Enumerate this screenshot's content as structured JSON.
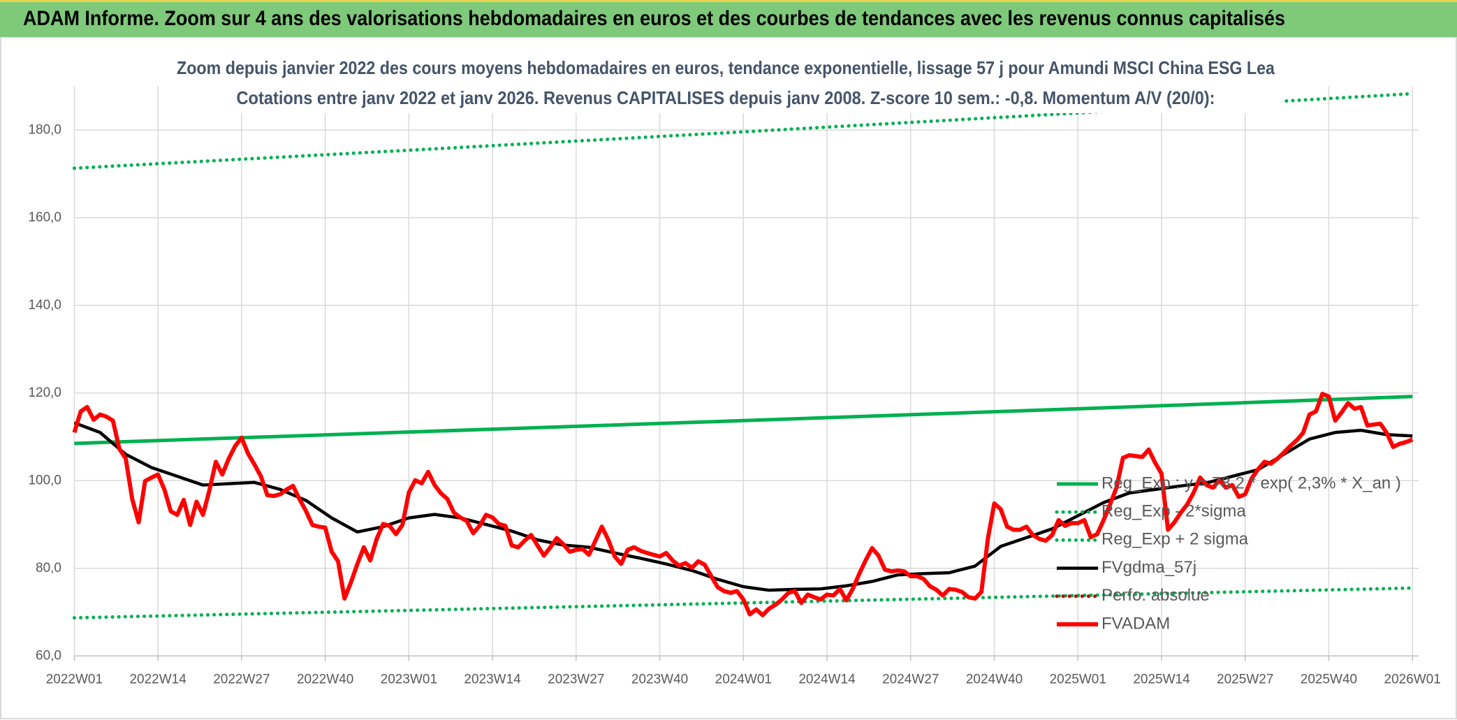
{
  "header": {
    "title": "ADAM Informe. Zoom sur 4 ans des valorisations hebdomadaires en euros et des courbes de tendances avec les revenus connus capitalisés"
  },
  "chart_data": {
    "type": "line",
    "title": "Zoom depuis janvier 2022 des cours moyens hebdomadaires en euros, tendance exponentielle, lissage 57 j pour Amundi MSCI China ESG Lea",
    "subtitle": "Cotations entre janv 2022 et janv 2026. Revenus CAPITALISES depuis janv 2008. Z-score 10 sem.: -0,8. Momentum A/V (20/0):",
    "xlim": [
      0,
      208
    ],
    "xticks": [
      {
        "value": 0,
        "label": "2022W01"
      },
      {
        "value": 13,
        "label": "2022W14"
      },
      {
        "value": 26,
        "label": "2022W27"
      },
      {
        "value": 39,
        "label": "2022W40"
      },
      {
        "value": 52,
        "label": "2023W01"
      },
      {
        "value": 65,
        "label": "2023W14"
      },
      {
        "value": 78,
        "label": "2023W27"
      },
      {
        "value": 91,
        "label": "2023W40"
      },
      {
        "value": 104,
        "label": "2024W01"
      },
      {
        "value": 117,
        "label": "2024W14"
      },
      {
        "value": 130,
        "label": "2024W27"
      },
      {
        "value": 143,
        "label": "2024W40"
      },
      {
        "value": 156,
        "label": "2025W01"
      },
      {
        "value": 169,
        "label": "2025W14"
      },
      {
        "value": 182,
        "label": "2025W27"
      },
      {
        "value": 195,
        "label": "2025W40"
      },
      {
        "value": 208,
        "label": "2026W01"
      }
    ],
    "ylim": [
      60,
      190
    ],
    "yticks": [
      {
        "value": 60,
        "label": "60,0"
      },
      {
        "value": 80,
        "label": "80,0"
      },
      {
        "value": 100,
        "label": "100,0"
      },
      {
        "value": 120,
        "label": "120,0"
      },
      {
        "value": 140,
        "label": "140,0"
      },
      {
        "value": 160,
        "label": "160,0"
      },
      {
        "value": 180,
        "label": "180,0"
      }
    ],
    "grid": true,
    "series": [
      {
        "name": "Reg_Exp : y = 78,2 * exp( 2,3% *  X_an )",
        "color": "#00b050",
        "dash": "solid",
        "x": [
          0,
          52,
          104,
          156,
          208
        ],
        "values": [
          108.5,
          111.1,
          113.7,
          116.4,
          119.2
        ]
      },
      {
        "name": "Reg_Exp - 2*sigma",
        "color": "#00b050",
        "dash": "dotted",
        "x": [
          0,
          52,
          104,
          156,
          208
        ],
        "values": [
          68.7,
          70.4,
          72.1,
          73.8,
          75.5
        ]
      },
      {
        "name": "Reg_Exp + 2 sigma",
        "color": "#00b050",
        "dash": "dotted",
        "x": [
          0,
          52,
          104,
          156,
          208
        ],
        "values": [
          171.3,
          175.4,
          179.6,
          183.9,
          188.3
        ]
      },
      {
        "name": "FVgdma_57j",
        "color": "#000000",
        "dash": "solid",
        "x": [
          0,
          4,
          8,
          12,
          16,
          20,
          24,
          28,
          32,
          36,
          40,
          44,
          48,
          52,
          56,
          60,
          64,
          68,
          72,
          76,
          80,
          84,
          88,
          92,
          96,
          100,
          104,
          108,
          112,
          116,
          120,
          124,
          128,
          132,
          136,
          140,
          144,
          148,
          152,
          156,
          160,
          164,
          168,
          172,
          176,
          180,
          184,
          188,
          192,
          196,
          200,
          204,
          208
        ],
        "values": [
          113.2,
          111,
          106,
          103,
          101,
          99,
          99.3,
          99.6,
          98,
          95.5,
          91.5,
          88.3,
          89.5,
          91.5,
          92.3,
          91.5,
          90,
          88.5,
          86.5,
          85.3,
          84.8,
          83.5,
          82.3,
          81,
          79.5,
          77.5,
          75.8,
          75,
          75.2,
          75.3,
          76,
          77,
          78.5,
          78.8,
          79,
          80.5,
          85,
          87,
          89,
          92,
          95,
          97.2,
          98,
          98.8,
          99.5,
          101,
          102.5,
          106,
          109.5,
          111,
          111.5,
          110.5,
          110.2
        ]
      },
      {
        "name": "Perfo. absolue",
        "color": "#c00000",
        "dash": "dotted",
        "x": [],
        "values": []
      },
      {
        "name": "FVADAM",
        "color": "#ff0000",
        "dash": "solid",
        "x": [
          0,
          1,
          2,
          3,
          4,
          5,
          6,
          7,
          8,
          9,
          10,
          11,
          12,
          13,
          14,
          15,
          16,
          17,
          18,
          19,
          20,
          21,
          22,
          23,
          24,
          25,
          26,
          27,
          28,
          29,
          30,
          31,
          32,
          33,
          34,
          35,
          36,
          37,
          38,
          39,
          40,
          41,
          42,
          43,
          44,
          45,
          46,
          47,
          48,
          49,
          50,
          51,
          52,
          53,
          54,
          55,
          56,
          57,
          58,
          59,
          60,
          61,
          62,
          63,
          64,
          65,
          66,
          67,
          68,
          69,
          70,
          71,
          72,
          73,
          74,
          75,
          76,
          77,
          78,
          79,
          80,
          81,
          82,
          83,
          84,
          85,
          86,
          87,
          88,
          89,
          90,
          91,
          92,
          93,
          94,
          95,
          96,
          97,
          98,
          99,
          100,
          101,
          102,
          103,
          104,
          105,
          106,
          107,
          108,
          109,
          110,
          111,
          112,
          113,
          114,
          115,
          116,
          117,
          118,
          119,
          120,
          121,
          122,
          123,
          124,
          125,
          126,
          127,
          128,
          129,
          130,
          131,
          132,
          133,
          134,
          135,
          136,
          137,
          138,
          139,
          140,
          141,
          142,
          143,
          144,
          145,
          146,
          147,
          148,
          149,
          150,
          151,
          152,
          153,
          154,
          155,
          156,
          157,
          158,
          159,
          160,
          161,
          162,
          163,
          164,
          165,
          166,
          167,
          168,
          169,
          170,
          171,
          172,
          173,
          174,
          175,
          176,
          177,
          178,
          179,
          180,
          181,
          182,
          183,
          184,
          185,
          186,
          187,
          188,
          189,
          190,
          191,
          192,
          193,
          194,
          195,
          196,
          197,
          198,
          199,
          200,
          201,
          202,
          203,
          204,
          205,
          206,
          207,
          208
        ],
        "values": [
          111,
          115.8,
          116.8,
          113.9,
          115.1,
          114.6,
          113.7,
          107.3,
          105,
          95.8,
          90.5,
          99.9,
          100.7,
          101.4,
          98,
          93,
          92.2,
          95.6,
          89.9,
          95.2,
          92.2,
          97.8,
          104.3,
          101.4,
          105,
          107.9,
          109.8,
          106.2,
          103.7,
          101,
          96.7,
          96.5,
          96.9,
          98,
          98.8,
          95.8,
          93.1,
          89.9,
          89.5,
          89.3,
          83.8,
          81.6,
          73.1,
          76.8,
          81,
          84.8,
          81.8,
          86.7,
          90.1,
          89.7,
          87.8,
          89.9,
          97.3,
          100.1,
          99.4,
          102,
          99,
          97.1,
          95.8,
          92.7,
          91.6,
          90.8,
          88,
          89.7,
          92.2,
          91.6,
          90.1,
          89.7,
          85.2,
          84.8,
          86.3,
          87.6,
          85.2,
          82.9,
          84.8,
          86.9,
          85.5,
          83.8,
          84.2,
          84.4,
          83.1,
          86.3,
          89.5,
          86.5,
          82.7,
          81,
          84.2,
          84.8,
          84,
          83.5,
          83.1,
          82.7,
          83.5,
          81.8,
          80.6,
          81.2,
          80.1,
          81.6,
          80.8,
          78.2,
          75.7,
          74.8,
          74.4,
          74.8,
          72.9,
          69.5,
          70.6,
          69.3,
          70.8,
          71.7,
          72.9,
          74.4,
          74.8,
          72.1,
          74,
          73.4,
          72.9,
          74,
          73.8,
          75.3,
          72.7,
          75.3,
          78.7,
          81.8,
          84.6,
          82.9,
          79.7,
          79.3,
          79.5,
          79.3,
          78.2,
          78.2,
          77.6,
          75.9,
          75.1,
          73.8,
          75.3,
          75.1,
          74.6,
          73.4,
          73.1,
          74.6,
          86.7,
          94.8,
          93.5,
          89.5,
          88.8,
          88.8,
          89.5,
          87.6,
          86.7,
          86.3,
          87.6,
          91,
          89.7,
          90.3,
          90.3,
          91,
          87.1,
          87.8,
          91,
          94.6,
          98.4,
          105.2,
          105.8,
          105.6,
          105.4,
          107.1,
          104.1,
          101.6,
          88.8,
          90.5,
          92.7,
          94.6,
          97.3,
          100.7,
          99,
          98.4,
          100.1,
          98.4,
          99,
          96.3,
          96.9,
          100.5,
          102.6,
          104.3,
          103.9,
          105,
          106.4,
          107.9,
          109.2,
          110.9,
          115.1,
          115.8,
          119.8,
          119.2,
          113.7,
          115.6,
          117.7,
          116.4,
          116.8,
          112.6,
          112.8,
          113,
          110.9,
          107.7,
          108.4,
          108.8,
          109.4
        ]
      }
    ]
  }
}
